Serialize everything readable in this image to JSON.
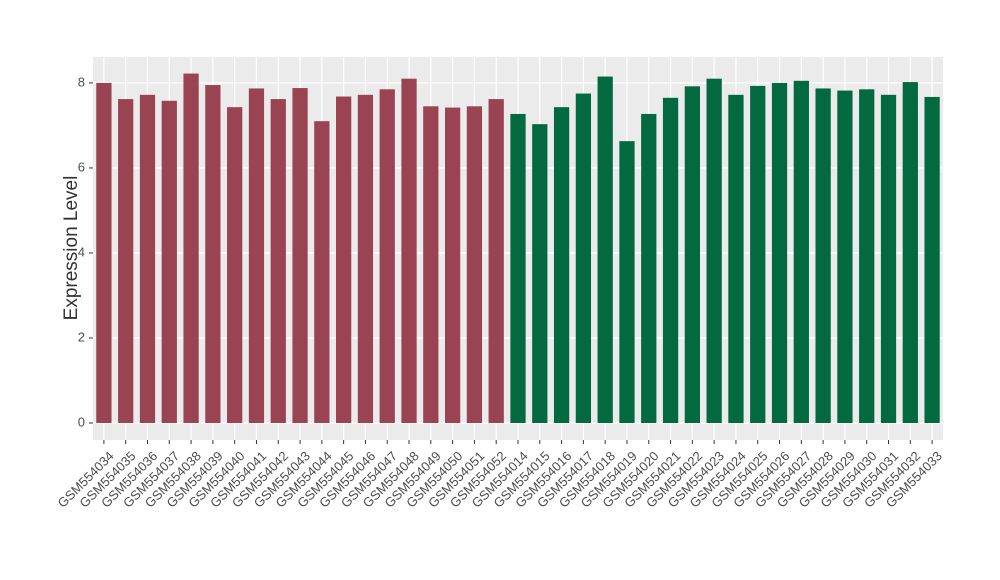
{
  "chart_data": {
    "type": "bar",
    "y_label": "Expression Level",
    "categories": [
      "GSM554034",
      "GSM554035",
      "GSM554036",
      "GSM554037",
      "GSM554038",
      "GSM554039",
      "GSM554040",
      "GSM554041",
      "GSM554042",
      "GSM554043",
      "GSM554044",
      "GSM554045",
      "GSM554046",
      "GSM554047",
      "GSM554048",
      "GSM554049",
      "GSM554050",
      "GSM554051",
      "GSM554052",
      "GSM554014",
      "GSM554015",
      "GSM554016",
      "GSM554017",
      "GSM554018",
      "GSM554019",
      "GSM554020",
      "GSM554021",
      "GSM554022",
      "GSM554023",
      "GSM554024",
      "GSM554025",
      "GSM554026",
      "GSM554027",
      "GSM554028",
      "GSM554029",
      "GSM554030",
      "GSM554031",
      "GSM554032",
      "GSM554033"
    ],
    "values": [
      8.0,
      7.62,
      7.72,
      7.58,
      8.22,
      7.95,
      7.43,
      7.87,
      7.62,
      7.88,
      7.1,
      7.68,
      7.72,
      7.85,
      8.1,
      7.45,
      7.42,
      7.45,
      7.62,
      7.27,
      7.03,
      7.43,
      7.75,
      8.15,
      6.63,
      7.27,
      7.65,
      7.92,
      8.1,
      7.72,
      7.93,
      8.0,
      8.05,
      7.87,
      7.82,
      7.85,
      7.72,
      8.02,
      7.67
    ],
    "colors": [
      "#9a4352",
      "#9a4352",
      "#9a4352",
      "#9a4352",
      "#9a4352",
      "#9a4352",
      "#9a4352",
      "#9a4352",
      "#9a4352",
      "#9a4352",
      "#9a4352",
      "#9a4352",
      "#9a4352",
      "#9a4352",
      "#9a4352",
      "#9a4352",
      "#9a4352",
      "#9a4352",
      "#9a4352",
      "#026941",
      "#026941",
      "#026941",
      "#026941",
      "#026941",
      "#026941",
      "#026941",
      "#026941",
      "#026941",
      "#026941",
      "#026941",
      "#026941",
      "#026941",
      "#026941",
      "#026941",
      "#026941",
      "#026941",
      "#026941",
      "#026941",
      "#026941"
    ],
    "ylim": [
      -0.4,
      8.61
    ],
    "yticks": [
      0,
      2,
      4,
      6,
      8
    ],
    "grid": true
  }
}
